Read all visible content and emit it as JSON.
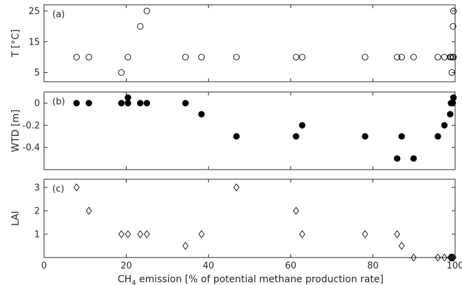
{
  "figure": {
    "xlabel_main": "CH",
    "xlabel_sub": "4",
    "xlabel_rest": " emission [% of potential methane production rate]",
    "xticks": [
      0,
      20,
      40,
      60,
      80,
      100
    ],
    "xlim": [
      0,
      100
    ]
  },
  "chart_data": [
    {
      "type": "scatter",
      "panel": "(a)",
      "ylabel": "T [°C]",
      "ylim": [
        2,
        27
      ],
      "yticks": [
        5,
        15,
        25
      ],
      "marker": "open-circle",
      "series": [
        {
          "x": [
            7.9,
            10.9,
            18.8,
            20.4,
            23.4,
            25.0,
            34.4,
            38.3,
            46.8,
            61.3,
            62.8,
            78.1,
            85.9,
            87.0,
            89.9,
            95.8,
            97.4,
            98.8,
            99.0,
            99.2,
            99.4,
            99.5,
            99.6,
            99.6
          ],
          "y": [
            10,
            10,
            5,
            10,
            20,
            25,
            10,
            10,
            10,
            10,
            10,
            10,
            10,
            10,
            10,
            10,
            10,
            10,
            10,
            5,
            10,
            20,
            25,
            10
          ]
        }
      ]
    },
    {
      "type": "scatter",
      "panel": "(b)",
      "ylabel": "WTD [m]",
      "ylim": [
        -0.6,
        0.1
      ],
      "yticks": [
        0,
        -0.2,
        -0.4
      ],
      "ytick_labels": [
        "0",
        "-0.2",
        "-0.4"
      ],
      "marker": "filled-circle",
      "series": [
        {
          "x": [
            7.9,
            10.9,
            18.8,
            20.4,
            20.4,
            23.4,
            25.0,
            34.4,
            38.3,
            46.8,
            61.3,
            62.8,
            78.1,
            85.9,
            87.0,
            89.9,
            95.8,
            97.4,
            98.8,
            99.0,
            99.4,
            99.6
          ],
          "y": [
            0,
            0,
            0,
            0,
            0.05,
            0,
            0,
            0,
            -0.1,
            -0.3,
            -0.3,
            -0.2,
            -0.3,
            -0.5,
            -0.3,
            -0.5,
            -0.3,
            -0.2,
            -0.1,
            0,
            0,
            0.05
          ]
        }
      ]
    },
    {
      "type": "scatter",
      "panel": "(c)",
      "ylabel": "LAI",
      "ylim": [
        0,
        3.35
      ],
      "yticks": [
        1,
        2,
        3
      ],
      "marker": "open-diamond",
      "series": [
        {
          "x": [
            7.9,
            10.9,
            18.8,
            20.4,
            23.4,
            25.0,
            34.4,
            38.3,
            46.8,
            61.3,
            62.8,
            78.1,
            85.9,
            87.0,
            89.9,
            95.8,
            97.4,
            98.8,
            99.0,
            99.2,
            99.4,
            99.6
          ],
          "y": [
            3,
            2,
            1,
            1,
            1,
            1,
            0.5,
            1,
            3,
            2,
            1,
            1,
            1,
            0.5,
            0,
            0,
            0,
            0,
            0,
            0,
            0,
            0
          ]
        }
      ]
    }
  ]
}
